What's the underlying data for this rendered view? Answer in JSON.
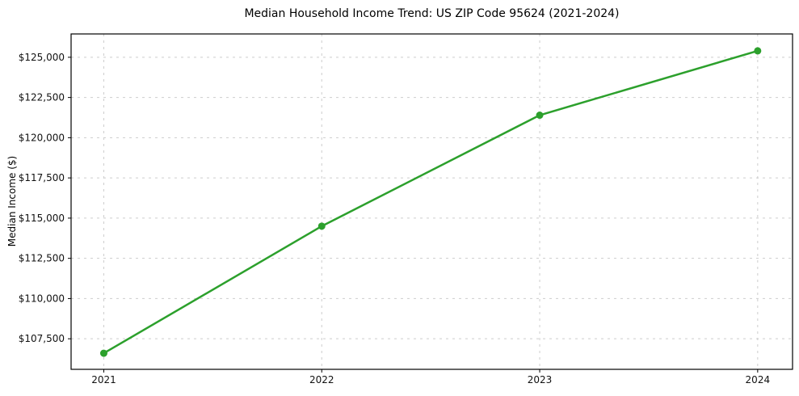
{
  "chart_data": {
    "type": "line",
    "title": "Median Household Income Trend: US ZIP Code 95624 (2021-2024)",
    "xlabel": "",
    "ylabel": "Median Income ($)",
    "x": [
      2021,
      2022,
      2023,
      2024
    ],
    "categories": [
      "2021",
      "2022",
      "2023",
      "2024"
    ],
    "series": [
      {
        "name": "Median Household Income",
        "values": [
          106600,
          114500,
          121400,
          125400
        ],
        "color": "#2ca02c",
        "marker": "circle",
        "marker_size": 4.5,
        "line_width": 2.5
      }
    ],
    "xlim": [
      2020.85,
      2024.16
    ],
    "ylim": [
      105600,
      126450
    ],
    "yticks": [
      107500,
      110000,
      112500,
      115000,
      117500,
      120000,
      122500,
      125000
    ],
    "ytick_labels": [
      "$107,500",
      "$110,000",
      "$112,500",
      "$115,000",
      "$117,500",
      "$120,000",
      "$122,500",
      "$125,000"
    ],
    "xticks": [
      2021,
      2022,
      2023,
      2024
    ],
    "xtick_labels": [
      "2021",
      "2022",
      "2023",
      "2024"
    ],
    "grid": true,
    "grid_style": "dashed",
    "grid_color": "#cdcdcd",
    "spine_color": "#000000",
    "tick_color": "#000000",
    "text_color": "#111111",
    "background": "#ffffff",
    "legend_position": "none"
  }
}
